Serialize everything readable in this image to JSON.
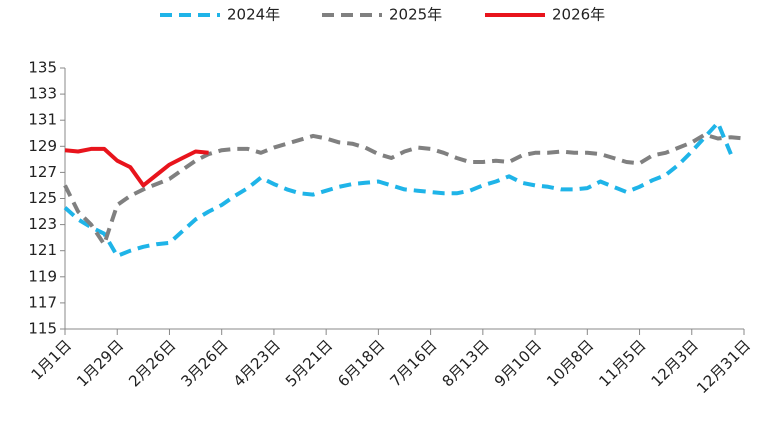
{
  "chart_data": {
    "type": "line",
    "categories": [
      "1月1日",
      null,
      null,
      null,
      "1月29日",
      null,
      null,
      null,
      "2月26日",
      null,
      null,
      null,
      "3月26日",
      null,
      null,
      null,
      "4月23日",
      null,
      null,
      null,
      "5月21日",
      null,
      null,
      null,
      "6月18日",
      null,
      null,
      null,
      "7月16日",
      null,
      null,
      null,
      "8月13日",
      null,
      null,
      null,
      "9月10日",
      null,
      null,
      null,
      "10月8日",
      null,
      null,
      null,
      "11月5日",
      null,
      null,
      null,
      "12月3日",
      null,
      null,
      null,
      "12月31日"
    ],
    "series": [
      {
        "name": "2024年",
        "color": "#1fb4e8",
        "dashed": true,
        "values": [
          124.3,
          123.4,
          122.8,
          122.3,
          120.6,
          121.0,
          121.3,
          121.5,
          121.6,
          122.5,
          123.4,
          124.0,
          124.5,
          125.2,
          125.8,
          126.6,
          126.1,
          125.7,
          125.4,
          125.3,
          125.6,
          125.9,
          126.1,
          126.2,
          126.3,
          126.0,
          125.7,
          125.6,
          125.5,
          125.4,
          125.4,
          125.6,
          126.0,
          126.3,
          126.7,
          126.2,
          126.0,
          125.9,
          125.7,
          125.7,
          125.8,
          126.3,
          125.9,
          125.5,
          125.9,
          126.4,
          126.8,
          127.6,
          128.6,
          129.7,
          130.8,
          128.4,
          null
        ]
      },
      {
        "name": "2025年",
        "color": "#808080",
        "dashed": true,
        "values": [
          126.0,
          124.0,
          123.0,
          121.5,
          124.5,
          125.2,
          125.7,
          126.1,
          126.5,
          127.2,
          127.9,
          128.4,
          128.7,
          128.8,
          128.8,
          128.5,
          128.9,
          129.2,
          129.5,
          129.8,
          129.6,
          129.3,
          129.2,
          128.9,
          128.4,
          128.1,
          128.6,
          128.9,
          128.8,
          128.5,
          128.1,
          127.8,
          127.8,
          127.9,
          127.8,
          128.3,
          128.5,
          128.5,
          128.6,
          128.5,
          128.5,
          128.4,
          128.1,
          127.8,
          127.7,
          128.3,
          128.5,
          128.9,
          129.3,
          129.9,
          129.6,
          129.7,
          129.6
        ]
      },
      {
        "name": "2026年",
        "color": "#e8141c",
        "dashed": false,
        "values": [
          128.7,
          128.6,
          128.8,
          128.8,
          127.9,
          127.4,
          126.0,
          126.8,
          127.6,
          128.1,
          128.6,
          128.5,
          null,
          null,
          null,
          null,
          null,
          null,
          null,
          null,
          null,
          null,
          null,
          null,
          null,
          null,
          null,
          null,
          null,
          null,
          null,
          null,
          null,
          null,
          null,
          null,
          null,
          null,
          null,
          null,
          null,
          null,
          null,
          null,
          null,
          null,
          null,
          null,
          null,
          null,
          null,
          null,
          null
        ]
      }
    ],
    "ylim": [
      115,
      135
    ],
    "yticks": [
      115,
      117,
      119,
      121,
      123,
      125,
      127,
      129,
      131,
      133,
      135
    ],
    "grid": false
  }
}
